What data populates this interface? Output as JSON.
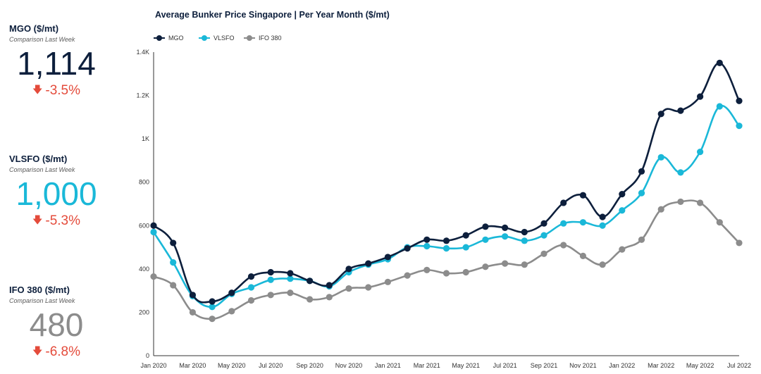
{
  "kpis": [
    {
      "title": "MGO ($/mt)",
      "subtitle": "Comparison Last Week",
      "value": "1,114",
      "change": "-3.5%",
      "value_color": "#0d1f3c"
    },
    {
      "title": "VLSFO ($/mt)",
      "subtitle": "Comparison Last Week",
      "value": "1,000",
      "change": "-5.3%",
      "value_color": "#1ab8d8"
    },
    {
      "title": "IFO 380 ($/mt)",
      "subtitle": "Comparison Last Week",
      "value": "480",
      "change": "-6.8%",
      "value_color": "#8c8c8c"
    }
  ],
  "change_color": "#e44b3b",
  "chart_data": {
    "type": "line",
    "title": "Average Bunker Price Singapore | Per Year Month ($/mt)",
    "legend_position": "top-left",
    "grid": false,
    "ylim": [
      0,
      1400
    ],
    "y_ticks": [
      0,
      200,
      400,
      600,
      800,
      1000,
      1200,
      1400
    ],
    "y_tick_labels": [
      "0",
      "200",
      "400",
      "600",
      "800",
      "1K",
      "1.2K",
      "1.4K"
    ],
    "categories": [
      "Jan 2020",
      "Feb 2020",
      "Mar 2020",
      "Apr 2020",
      "May 2020",
      "Jun 2020",
      "Jul 2020",
      "Aug 2020",
      "Sep 2020",
      "Oct 2020",
      "Nov 2020",
      "Dec 2020",
      "Jan 2021",
      "Feb 2021",
      "Mar 2021",
      "Apr 2021",
      "May 2021",
      "Jun 2021",
      "Jul 2021",
      "Aug 2021",
      "Sep 2021",
      "Oct 2021",
      "Nov 2021",
      "Dec 2021",
      "Jan 2022",
      "Feb 2022",
      "Mar 2022",
      "Apr 2022",
      "May 2022",
      "Jun 2022",
      "Jul 2022"
    ],
    "x_tick_labels": [
      "Jan 2020",
      "Mar 2020",
      "May 2020",
      "Jul 2020",
      "Sep 2020",
      "Nov 2020",
      "Jan 2021",
      "Mar 2021",
      "May 2021",
      "Jul 2021",
      "Sep 2021",
      "Nov 2021",
      "Jan 2022",
      "Mar 2022",
      "May 2022",
      "Jul 2022"
    ],
    "series": [
      {
        "name": "MGO",
        "color": "#0d1f3c",
        "values": [
          600,
          520,
          280,
          250,
          290,
          365,
          385,
          380,
          345,
          325,
          400,
          425,
          455,
          495,
          535,
          530,
          555,
          595,
          590,
          570,
          610,
          705,
          740,
          640,
          745,
          850,
          1115,
          1130,
          1195,
          1350,
          1175
        ]
      },
      {
        "name": "VLSFO",
        "color": "#1ab8d8",
        "values": [
          570,
          430,
          275,
          225,
          285,
          315,
          350,
          355,
          345,
          320,
          385,
          420,
          445,
          500,
          505,
          495,
          500,
          535,
          550,
          530,
          555,
          610,
          615,
          600,
          670,
          750,
          915,
          845,
          940,
          1150,
          1060
        ]
      },
      {
        "name": "IFO 380",
        "color": "#8c8c8c",
        "values": [
          365,
          325,
          200,
          170,
          205,
          255,
          280,
          290,
          260,
          270,
          310,
          315,
          340,
          370,
          395,
          380,
          385,
          410,
          425,
          420,
          470,
          510,
          460,
          420,
          490,
          535,
          675,
          710,
          705,
          615,
          520
        ]
      }
    ]
  }
}
